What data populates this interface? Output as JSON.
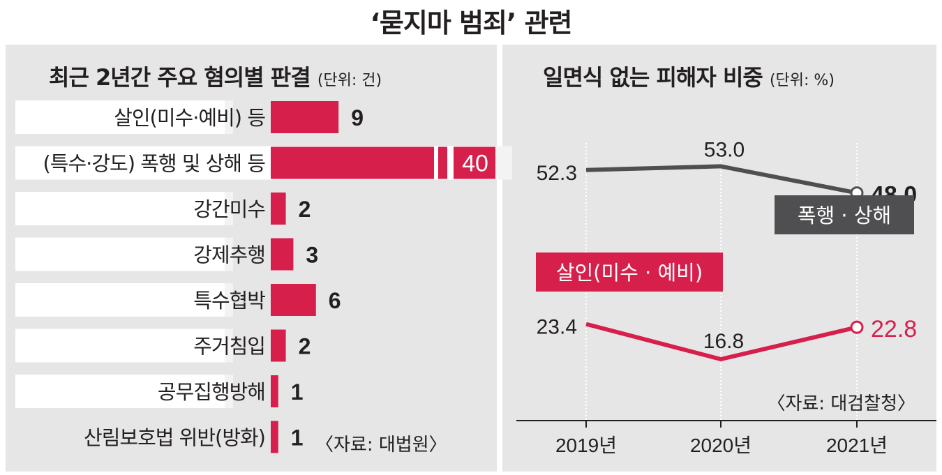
{
  "title": "‘묻지마 범죄’ 관련",
  "colors": {
    "accent": "#d71f4b",
    "dark": "#4f4f51",
    "panel": "#e6e6e7"
  },
  "chart_data": [
    {
      "type": "bar",
      "title": "최근 2년간 주요 혐의별 판결",
      "unit": "(단위: 건)",
      "categories": [
        "살인(미수·예비)  등",
        "(특수·강도) 폭행 및 상해 등",
        "강간미수",
        "강제추행",
        "특수협박",
        "주거침입",
        "공무집행방해",
        "산림보호법 위반(방화)"
      ],
      "values": [
        9,
        40,
        2,
        3,
        6,
        2,
        1,
        1
      ],
      "value_labels": [
        "9",
        "40",
        "2",
        "3",
        "6",
        "2",
        "1",
        "1"
      ],
      "source": "〈자료: 대법원〉"
    },
    {
      "type": "line",
      "title": "일면식 없는 피해자 비중",
      "unit": "(단위: %)",
      "x": [
        "2019년",
        "2020년",
        "2021년"
      ],
      "series": [
        {
          "name": "폭행 · 상해",
          "values": [
            52.3,
            53.0,
            48.0
          ],
          "labels": [
            "52.3",
            "53.0",
            "48.0"
          ]
        },
        {
          "name": "살인(미수 · 예비)",
          "values": [
            23.4,
            16.8,
            22.8
          ],
          "labels": [
            "23.4",
            "16.8",
            "22.8"
          ]
        }
      ],
      "source": "〈자료: 대검찰청〉"
    }
  ]
}
